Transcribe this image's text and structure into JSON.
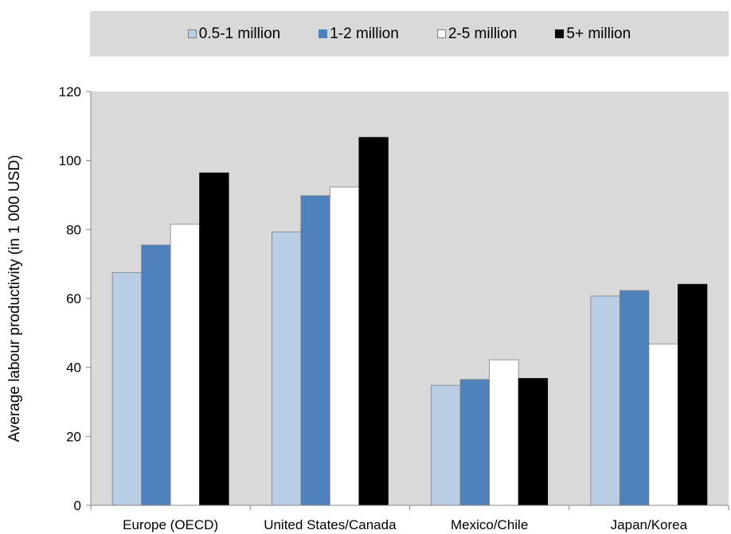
{
  "chart_data": {
    "type": "bar",
    "title": "",
    "xlabel": "",
    "ylabel": "Average labour productivity (in 1 000 USD)",
    "ylim": [
      0,
      120
    ],
    "yticks": [
      0,
      20,
      40,
      60,
      80,
      100,
      120
    ],
    "grid": false,
    "legend_position": "top",
    "categories": [
      "Europe (OECD)",
      "United States/Canada",
      "Mexico/Chile",
      "Japan/Korea"
    ],
    "series": [
      {
        "name": "0.5-1 million",
        "color": "#b9cde5",
        "values": [
          67.5,
          79.3,
          34.8,
          60.7
        ]
      },
      {
        "name": "1-2 million",
        "color": "#4f81bd",
        "values": [
          75.5,
          89.8,
          36.5,
          62.3
        ]
      },
      {
        "name": "2-5 million",
        "color": "#ffffff",
        "values": [
          81.5,
          92.3,
          42.2,
          46.8
        ]
      },
      {
        "name": "5+ million",
        "color": "#000000",
        "values": [
          96.4,
          106.7,
          36.8,
          64.1
        ]
      }
    ],
    "plot_background": "#d9d9d9"
  }
}
